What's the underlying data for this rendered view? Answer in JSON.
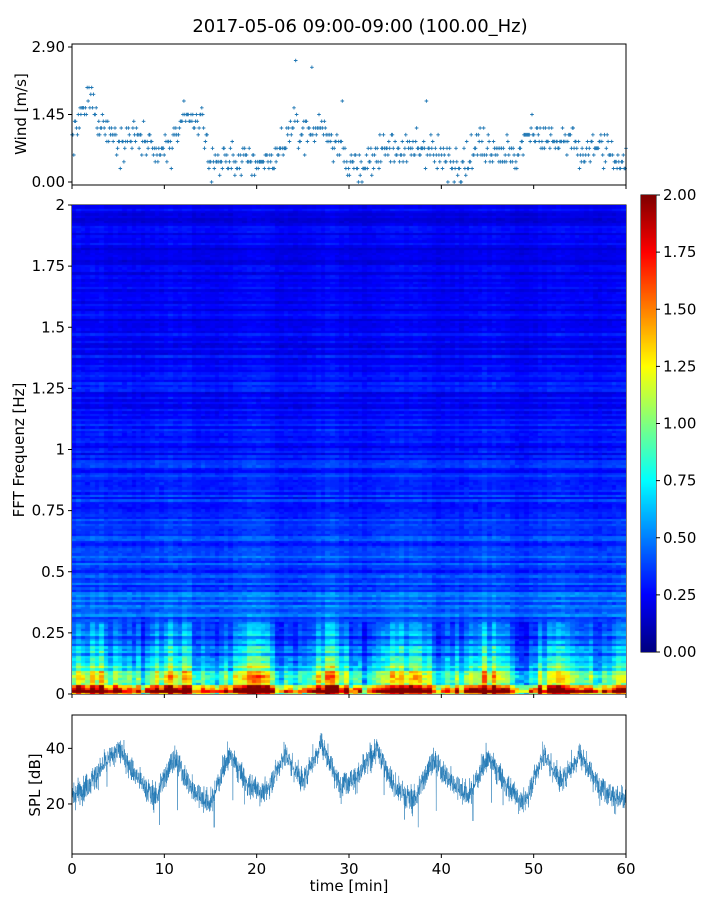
{
  "figure": {
    "title": "2017-05-06 09:00-09:00 (100.00_Hz)"
  },
  "colors": {
    "series": "#1f77b4",
    "axes": "#000000",
    "background": "#ffffff"
  },
  "chart_data": [
    {
      "id": "wind",
      "type": "scatter",
      "title": "",
      "xlabel": "",
      "ylabel": "Wind [m/s]",
      "xlim": [
        0,
        60
      ],
      "ylim": [
        0,
        2.9
      ],
      "yticks": [
        "0.00",
        "1.45",
        "2.90"
      ],
      "ytick_values": [
        0,
        1.45,
        2.9
      ],
      "marker": "+",
      "step": 0.145,
      "description_of_series": "quantized wind speed samples, 0.0–2.9 m/s, ~600 points across 60 min",
      "anchors_x": [
        0,
        2,
        3,
        5,
        7,
        9,
        11,
        12,
        14,
        15,
        17,
        20,
        22,
        24,
        26,
        27,
        29,
        31,
        32,
        34,
        36,
        38,
        40,
        42,
        44,
        46,
        48,
        50,
        52,
        54,
        55,
        57,
        59,
        60
      ],
      "anchors_y": [
        0.9,
        1.8,
        1.3,
        0.9,
        1.0,
        0.5,
        0.8,
        1.5,
        1.3,
        0.4,
        0.5,
        0.4,
        0.5,
        1.2,
        1.0,
        1.3,
        0.7,
        0.2,
        0.3,
        0.9,
        0.6,
        0.8,
        0.5,
        0.4,
        0.8,
        0.7,
        0.5,
        1.2,
        0.8,
        0.9,
        0.5,
        0.8,
        0.4,
        0.6
      ]
    },
    {
      "id": "spectrogram",
      "type": "heatmap",
      "xlabel": "",
      "ylabel": "FFT Frequenz [Hz]",
      "xlim": [
        0,
        60
      ],
      "ylim": [
        0,
        2
      ],
      "yticks": [
        "0",
        "0.25",
        "0.5",
        "0.75",
        "1",
        "1.25",
        "1.5",
        "1.75",
        "2"
      ],
      "ytick_values": [
        0,
        0.25,
        0.5,
        0.75,
        1,
        1.25,
        1.5,
        1.75,
        2
      ],
      "colormap": "jet",
      "clim": [
        0,
        2
      ],
      "colorbar_ticks": [
        "0.00",
        "0.25",
        "0.50",
        "0.75",
        "1.00",
        "1.25",
        "1.50",
        "1.75",
        "2.00"
      ],
      "colorbar_tick_values": [
        0,
        0.25,
        0.5,
        0.75,
        1,
        1.25,
        1.5,
        1.75,
        2
      ],
      "freq_bins": 200,
      "time_bins": 120,
      "mean_profile_freq": [
        0,
        0.02,
        0.05,
        0.1,
        0.15,
        0.2,
        0.3,
        0.5,
        0.75,
        1.0,
        1.5,
        2.0
      ],
      "mean_profile_value": [
        1.8,
        1.6,
        1.2,
        0.8,
        0.6,
        0.5,
        0.42,
        0.35,
        0.3,
        0.27,
        0.22,
        0.2
      ]
    },
    {
      "id": "spl",
      "type": "line",
      "xlabel": "time [min]",
      "ylabel": "SPL [dB]",
      "xlim": [
        0,
        60
      ],
      "ylim": [
        2,
        52
      ],
      "xticks": [
        "0",
        "10",
        "20",
        "30",
        "40",
        "50",
        "60"
      ],
      "xtick_values": [
        0,
        10,
        20,
        30,
        40,
        50,
        60
      ],
      "yticks": [
        "20",
        "40"
      ],
      "ytick_values": [
        20,
        40
      ],
      "anchors_x": [
        0,
        2,
        5,
        7,
        9,
        11,
        13,
        15,
        17,
        19,
        21,
        23,
        25,
        27,
        29,
        31,
        33,
        35,
        37,
        39,
        41,
        43,
        45,
        47,
        49,
        51,
        53,
        55,
        57,
        59,
        60
      ],
      "anchors_y": [
        22,
        28,
        40,
        30,
        22,
        37,
        25,
        20,
        38,
        27,
        24,
        38,
        28,
        42,
        27,
        30,
        40,
        26,
        21,
        36,
        28,
        23,
        37,
        27,
        20,
        38,
        28,
        38,
        27,
        22,
        21
      ]
    }
  ]
}
